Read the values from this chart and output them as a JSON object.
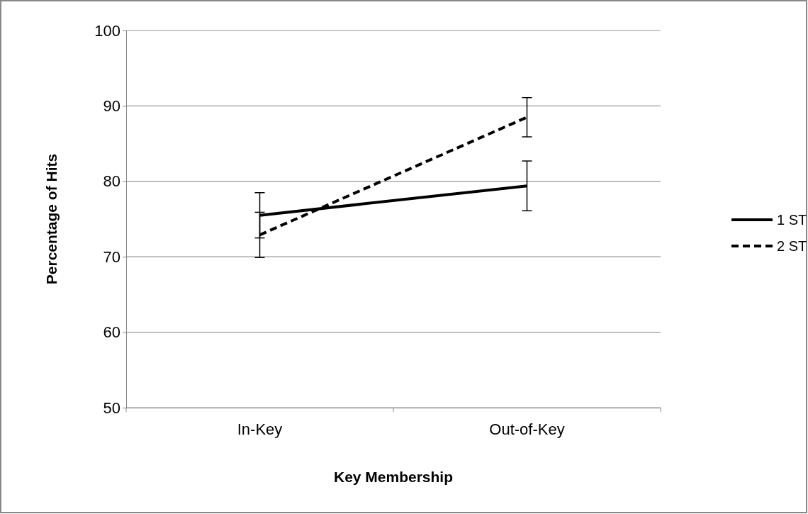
{
  "chart_data": {
    "type": "line",
    "xlabel": "Key Membership",
    "ylabel": "Percentage of Hits",
    "categories": [
      "In-Key",
      "Out-of-Key"
    ],
    "series": [
      {
        "name": "1 ST",
        "color": "#000000",
        "values": [
          75.5,
          79.4
        ],
        "errors": [
          3,
          3.3
        ],
        "line_style": "solid"
      },
      {
        "name": "2 ST",
        "color": "#000000",
        "values": [
          72.9,
          88.5
        ],
        "errors": [
          3,
          2.6
        ],
        "line_style": "dashed"
      }
    ],
    "ylim": [
      50,
      100
    ],
    "yticks": [
      50,
      60,
      70,
      80,
      90,
      100
    ],
    "grid": "y",
    "legend": "right",
    "marker": "none"
  }
}
